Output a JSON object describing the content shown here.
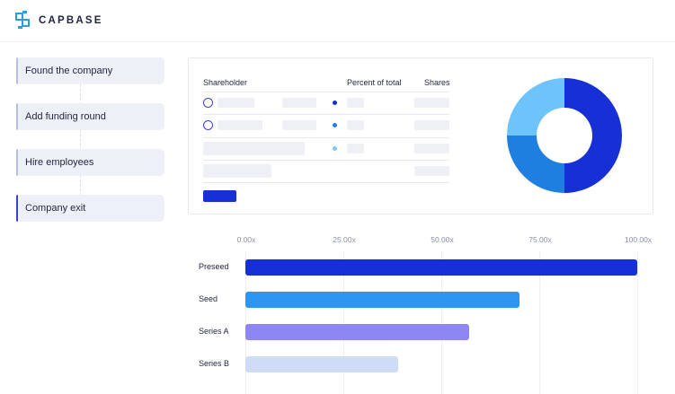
{
  "brand": {
    "name": "CAPBASE",
    "logo_color": "#2d9cdb"
  },
  "steps": [
    {
      "label": "Found the company"
    },
    {
      "label": "Add funding round"
    },
    {
      "label": "Hire employees"
    },
    {
      "label": "Company exit",
      "selected": true
    }
  ],
  "cap_table": {
    "headers": [
      "Shareholder",
      "Percent of total",
      "Shares"
    ],
    "dot_colors": [
      "#1730d6",
      "#2a7ae2",
      "#7cc7f5"
    ],
    "add_button_color": "#1730d6"
  },
  "donut_chart": {
    "slices": [
      {
        "value": 50,
        "color": "#1730d6"
      },
      {
        "value": 25,
        "color": "#1e7fe0"
      },
      {
        "value": 25,
        "color": "#6cc4fb"
      }
    ]
  },
  "chart_data": {
    "type": "bar",
    "orientation": "horizontal",
    "categories": [
      "Preseed",
      "Seed",
      "Series A",
      "Series B"
    ],
    "values": [
      100,
      70,
      57,
      39
    ],
    "xlim": [
      0,
      100
    ],
    "xticks": [
      "0.00x",
      "25.00x",
      "50.00x",
      "75.00x",
      "100.00x"
    ],
    "colors": [
      "#1730d6",
      "#2d95f2",
      "#8f86f5",
      "#cfdcf7"
    ],
    "grid": true
  }
}
